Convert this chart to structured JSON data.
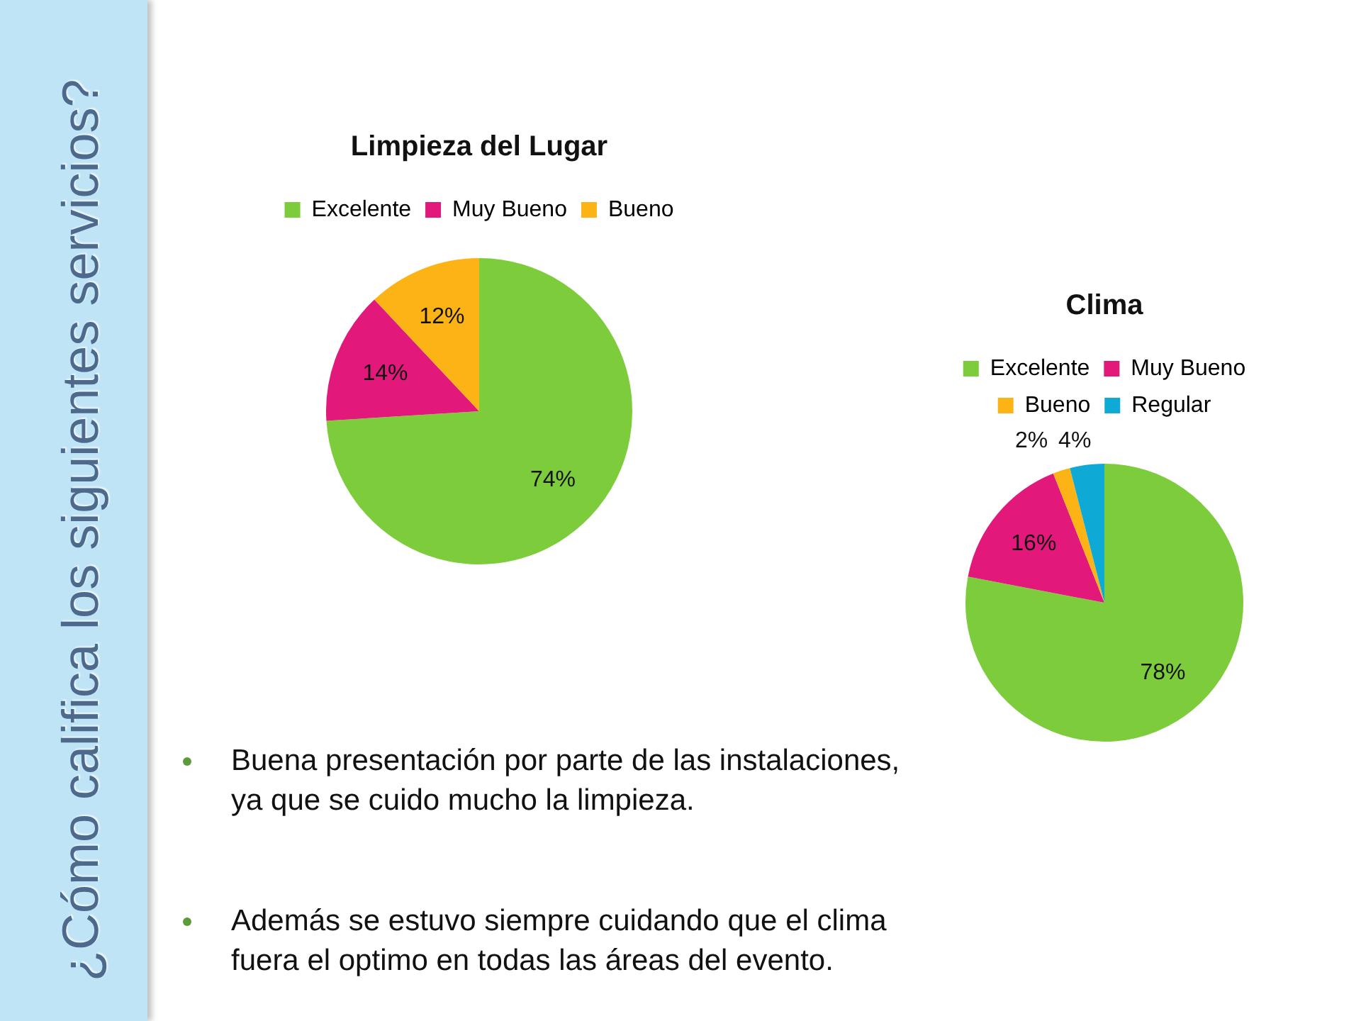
{
  "chart_data": [
    {
      "type": "pie",
      "title": "Limpieza del Lugar",
      "categories": [
        "Excelente",
        "Muy Bueno",
        "Bueno"
      ],
      "values": [
        74,
        14,
        12
      ],
      "colors": [
        "#7ccc3c",
        "#e2197a",
        "#fcb316"
      ],
      "value_labels": [
        "74%",
        "14%",
        "12%"
      ],
      "legend": "top",
      "annotations": [
        "¿Cómo califica los siguientes servicios?",
        "Buena presentación por parte de las instalaciones, ya que se cuido mucho la limpieza."
      ]
    },
    {
      "type": "pie",
      "title": "Clima",
      "categories": [
        "Excelente",
        "Muy Bueno",
        "Bueno",
        "Regular"
      ],
      "values": [
        78,
        16,
        2,
        4
      ],
      "colors": [
        "#7ccc3c",
        "#e2197a",
        "#fcb316",
        "#0fa9d6"
      ],
      "value_labels": [
        "78%",
        "16%",
        "2%",
        "4%"
      ],
      "legend": "top",
      "annotations": [
        "Además se estuvo siempre cuidando que el clima fuera el optimo en todas las áreas del evento."
      ]
    }
  ]
}
